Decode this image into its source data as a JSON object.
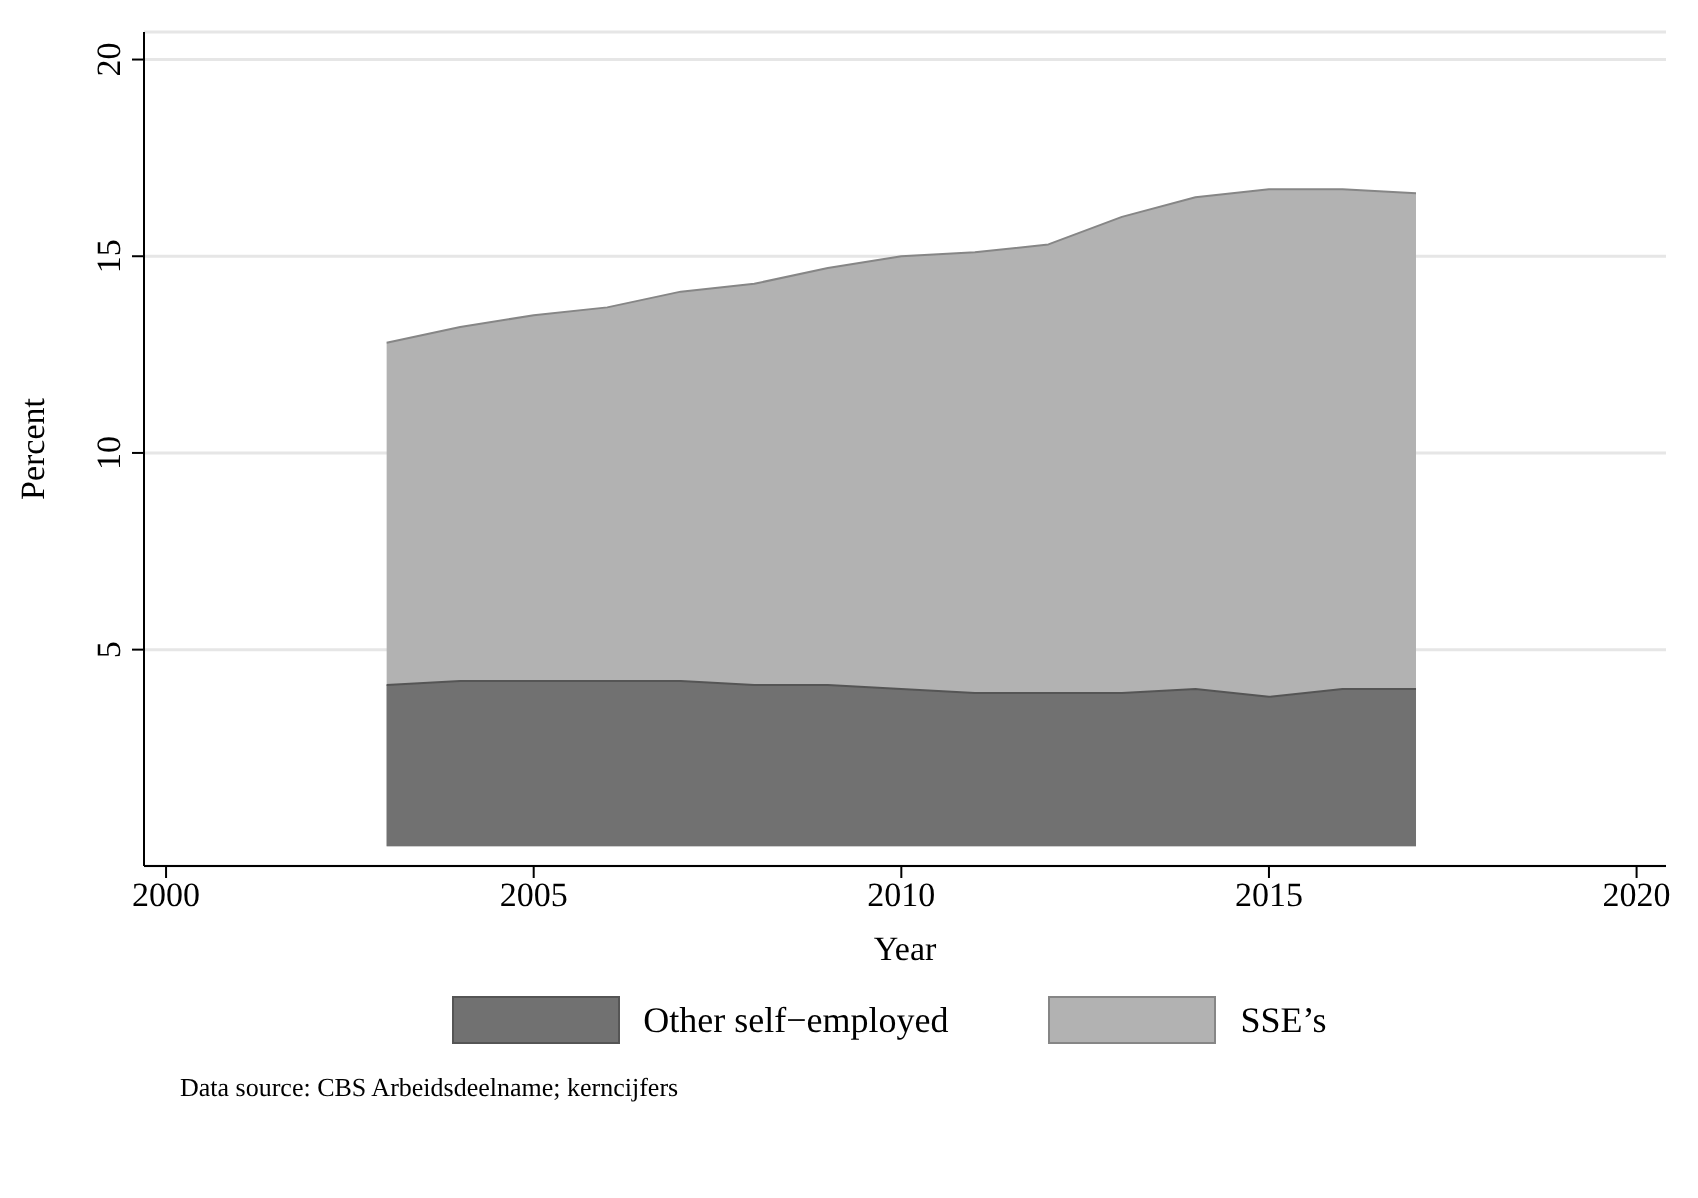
{
  "chart_data": {
    "type": "area",
    "xlabel": "Year",
    "ylabel": "Percent",
    "x": [
      2003,
      2004,
      2005,
      2006,
      2007,
      2008,
      2009,
      2010,
      2011,
      2012,
      2013,
      2014,
      2015,
      2016,
      2017
    ],
    "series": [
      {
        "name": "Other self−employed",
        "color": "#717171",
        "values": [
          4.1,
          4.2,
          4.2,
          4.2,
          4.2,
          4.1,
          4.1,
          4.0,
          3.9,
          3.9,
          3.9,
          4.0,
          3.8,
          4.0,
          4.0
        ]
      },
      {
        "name": "SSE’s",
        "color": "#b2b2b2",
        "values": [
          12.8,
          13.2,
          13.5,
          13.7,
          14.1,
          14.3,
          14.7,
          15.0,
          15.1,
          15.3,
          16.0,
          16.5,
          16.7,
          16.7,
          16.6
        ]
      }
    ],
    "xlim": [
      1999.7,
      2020.4
    ],
    "xticks": [
      2000,
      2005,
      2010,
      2015,
      2020
    ],
    "ylim": [
      -0.5,
      20.7
    ],
    "yticks": [
      5,
      10,
      15,
      20
    ],
    "grid": "y",
    "legend": "bottom",
    "annotations": [
      "Data source: CBS Arbeidsdeelname; kerncijfers"
    ]
  }
}
